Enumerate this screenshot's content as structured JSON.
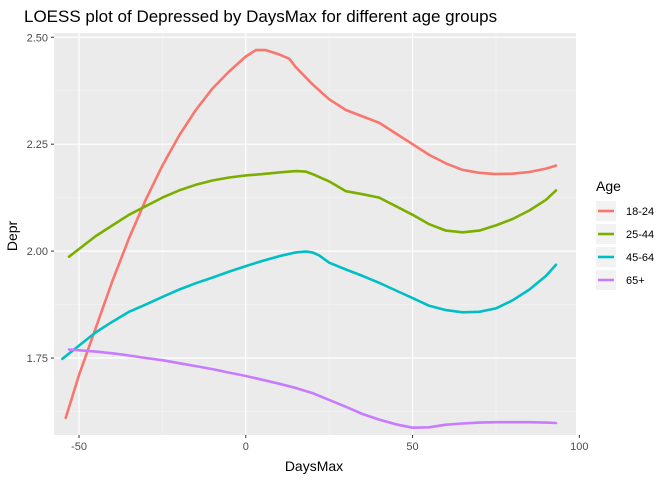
{
  "chart_data": {
    "type": "line",
    "title": "LOESS plot of Depressed by DaysMax for different age groups",
    "xlabel": "DaysMax",
    "ylabel": "Depr",
    "xlim": [
      -57.5,
      99
    ],
    "ylim": [
      1.57,
      2.51
    ],
    "x_ticks": [
      -50,
      0,
      50,
      100
    ],
    "x_tick_labels": [
      "-50",
      "0",
      "50",
      "100"
    ],
    "y_ticks": [
      1.75,
      2.0,
      2.25,
      2.5
    ],
    "y_tick_labels": [
      "1.75",
      "2.00",
      "2.25",
      "2.50"
    ],
    "grid": true,
    "background": "#ebebeb",
    "legend": {
      "title": "Age",
      "position": "right"
    },
    "series": [
      {
        "name": "18-24",
        "color": "#f8766d",
        "x": [
          -54,
          -50,
          -45,
          -40,
          -35,
          -30,
          -25,
          -20,
          -15,
          -10,
          -5,
          0,
          3,
          6,
          10,
          13,
          15,
          20,
          25,
          30,
          35,
          40,
          45,
          50,
          55,
          60,
          65,
          70,
          75,
          80,
          85,
          90,
          93
        ],
        "y": [
          1.61,
          1.71,
          1.82,
          1.93,
          2.03,
          2.12,
          2.2,
          2.27,
          2.33,
          2.38,
          2.42,
          2.455,
          2.47,
          2.47,
          2.46,
          2.45,
          2.43,
          2.39,
          2.355,
          2.33,
          2.315,
          2.3,
          2.275,
          2.25,
          2.225,
          2.205,
          2.19,
          2.183,
          2.18,
          2.181,
          2.185,
          2.193,
          2.2
        ]
      },
      {
        "name": "25-44",
        "color": "#7cae00",
        "x": [
          -53,
          -45,
          -40,
          -35,
          -30,
          -25,
          -20,
          -15,
          -10,
          -5,
          0,
          5,
          10,
          15,
          18,
          20,
          25,
          30,
          35,
          40,
          45,
          50,
          55,
          60,
          65,
          70,
          75,
          80,
          85,
          90,
          93
        ],
        "y": [
          1.987,
          2.035,
          2.06,
          2.085,
          2.105,
          2.125,
          2.142,
          2.155,
          2.165,
          2.172,
          2.177,
          2.18,
          2.184,
          2.187,
          2.186,
          2.18,
          2.163,
          2.14,
          2.133,
          2.125,
          2.105,
          2.085,
          2.063,
          2.048,
          2.044,
          2.048,
          2.06,
          2.075,
          2.095,
          2.12,
          2.142
        ]
      },
      {
        "name": "45-64",
        "color": "#00bfc4",
        "x": [
          -55,
          -45,
          -40,
          -35,
          -30,
          -25,
          -20,
          -15,
          -10,
          -5,
          0,
          5,
          10,
          15,
          18,
          20,
          22,
          25,
          30,
          35,
          40,
          45,
          50,
          55,
          60,
          65,
          70,
          75,
          80,
          85,
          90,
          93
        ],
        "y": [
          1.748,
          1.81,
          1.835,
          1.858,
          1.875,
          1.893,
          1.91,
          1.925,
          1.938,
          1.952,
          1.965,
          1.977,
          1.988,
          1.997,
          1.999,
          1.997,
          1.99,
          1.973,
          1.957,
          1.942,
          1.926,
          1.908,
          1.89,
          1.872,
          1.862,
          1.857,
          1.858,
          1.866,
          1.885,
          1.91,
          1.942,
          1.968
        ]
      },
      {
        "name": "65+",
        "color": "#c77cff",
        "x": [
          -53,
          -45,
          -40,
          -35,
          -30,
          -25,
          -20,
          -15,
          -10,
          -5,
          0,
          5,
          10,
          15,
          20,
          25,
          30,
          35,
          40,
          45,
          50,
          55,
          60,
          65,
          70,
          75,
          80,
          85,
          90,
          93
        ],
        "y": [
          1.77,
          1.765,
          1.761,
          1.756,
          1.75,
          1.745,
          1.738,
          1.731,
          1.724,
          1.716,
          1.708,
          1.699,
          1.69,
          1.68,
          1.668,
          1.652,
          1.636,
          1.619,
          1.606,
          1.595,
          1.587,
          1.588,
          1.594,
          1.597,
          1.599,
          1.6,
          1.6,
          1.6,
          1.599,
          1.598
        ]
      }
    ]
  }
}
